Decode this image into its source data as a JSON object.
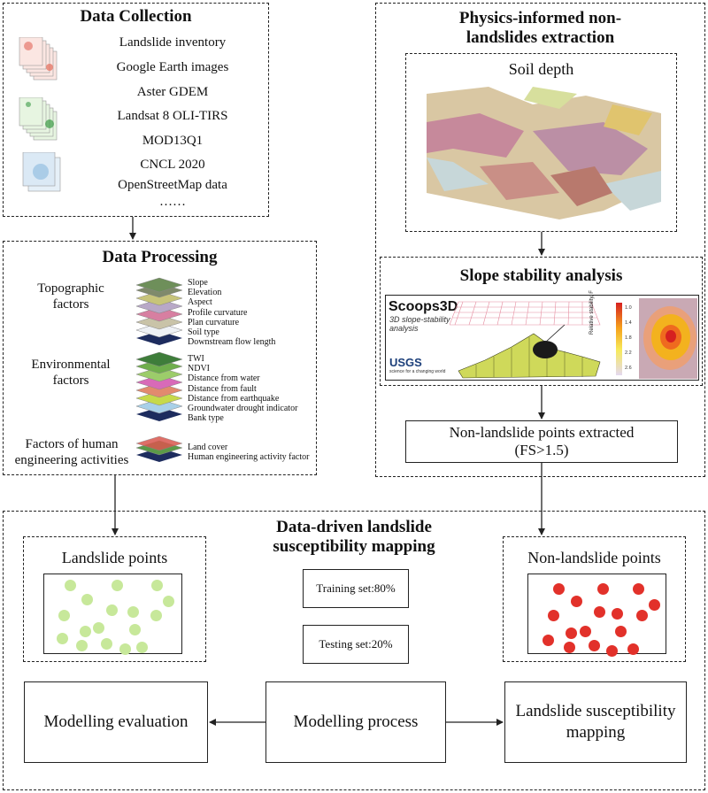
{
  "data_collection": {
    "title": "Data Collection",
    "items": [
      "Landslide inventory",
      "Google Earth images",
      "Aster GDEM",
      "Landsat 8 OLI-TIRS",
      "MOD13Q1",
      "CNCL 2020",
      "OpenStreetMap data",
      "……"
    ]
  },
  "data_processing": {
    "title": "Data Processing",
    "topographic": {
      "label_lines": [
        "Topographic",
        "factors"
      ],
      "items": [
        "Slope",
        "Elevation",
        "Aspect",
        "Profile curvature",
        "Plan curvature",
        "Soil type",
        "Downstream flow length"
      ]
    },
    "environmental": {
      "label_lines": [
        "Environmental",
        "factors"
      ],
      "items": [
        "TWI",
        "NDVI",
        "Distance from water",
        "Distance from fault",
        "Distance from earthquake",
        "Groundwater drought indicator",
        "Bank type"
      ]
    },
    "human": {
      "label_lines": [
        "Factors of human",
        "engineering activities"
      ],
      "items": [
        "Land cover",
        "Human engineering activity factor"
      ]
    }
  },
  "physics": {
    "title_lines": [
      "Physics-informed non-",
      "landslides extraction"
    ],
    "soil_depth": "Soil depth",
    "slope_stability": "Slope stability analysis",
    "scoops": {
      "name": "Scoops3D",
      "subtitle_lines": [
        "3D slope-stability",
        "analysis"
      ],
      "usgs": "USGS",
      "usgs_tag": "science for a changing world",
      "colorbar_label": "Relative stability, F",
      "ticks": [
        "1.0",
        "1.4",
        "1.8",
        "2.2",
        "2.6"
      ]
    },
    "extracted_lines": [
      "Non-landslide points extracted",
      "(FS>1.5)"
    ]
  },
  "data_driven": {
    "title_lines": [
      "Data-driven landslide",
      "susceptibility mapping"
    ],
    "landslide_points": "Landslide points",
    "non_landslide_points": "Non-landslide points",
    "training": "Training set:80%",
    "testing": "Testing set:20%",
    "modelling_evaluation": "Modelling evaluation",
    "modelling_process": "Modelling process",
    "mapping_lines": [
      "Landslide susceptibility",
      "mapping"
    ]
  },
  "colors": {
    "landslide_point": "#c7e89a",
    "non_landslide_point": "#e2312a"
  }
}
